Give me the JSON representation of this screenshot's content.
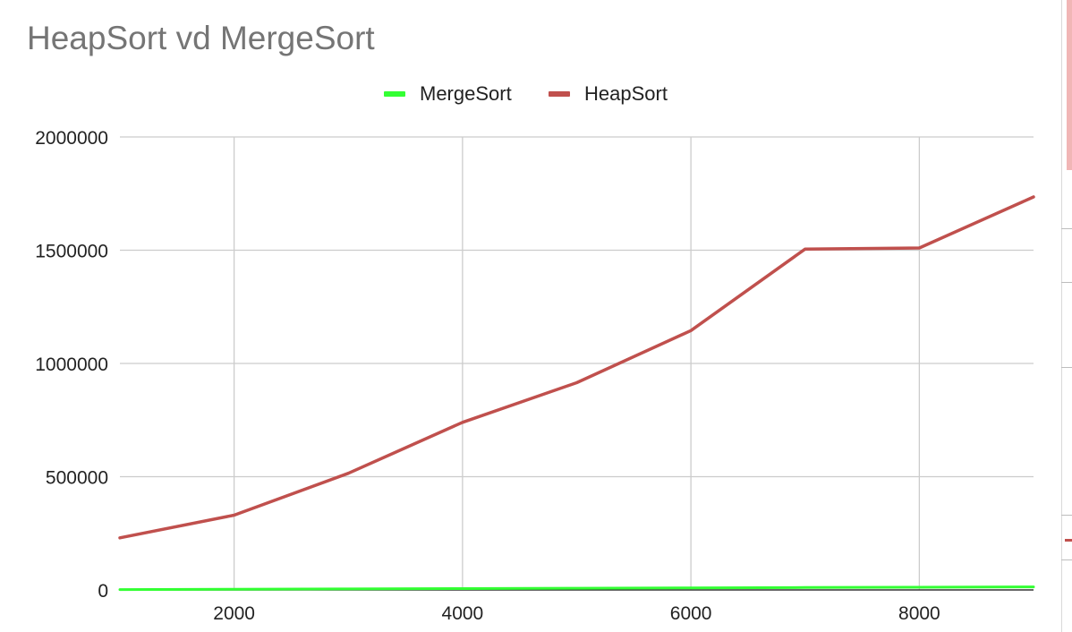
{
  "chart_data": {
    "type": "line",
    "title": "HeapSort vd MergeSort",
    "xlabel": "",
    "ylabel": "",
    "xlim": [
      1000,
      9000
    ],
    "ylim": [
      0,
      2000000
    ],
    "x_ticks": [
      2000,
      4000,
      6000,
      8000
    ],
    "y_ticks": [
      0,
      500000,
      1000000,
      1500000,
      2000000
    ],
    "x_tick_labels": [
      "2000",
      "4000",
      "6000",
      "8000"
    ],
    "y_tick_labels": [
      "0",
      "500000",
      "1000000",
      "1500000",
      "2000000"
    ],
    "grid": true,
    "legend_position": "top",
    "x": [
      1000,
      2000,
      3000,
      4000,
      5000,
      6000,
      7000,
      8000,
      9000
    ],
    "series": [
      {
        "name": "MergeSort",
        "color": "#33ff33",
        "values": [
          1500,
          3000,
          4500,
          6000,
          7500,
          9000,
          10500,
          12000,
          13500
        ]
      },
      {
        "name": "HeapSort",
        "color": "#c0504d",
        "values": [
          230000,
          330000,
          515000,
          740000,
          915000,
          1145000,
          1505000,
          1510000,
          1735000
        ]
      }
    ]
  }
}
